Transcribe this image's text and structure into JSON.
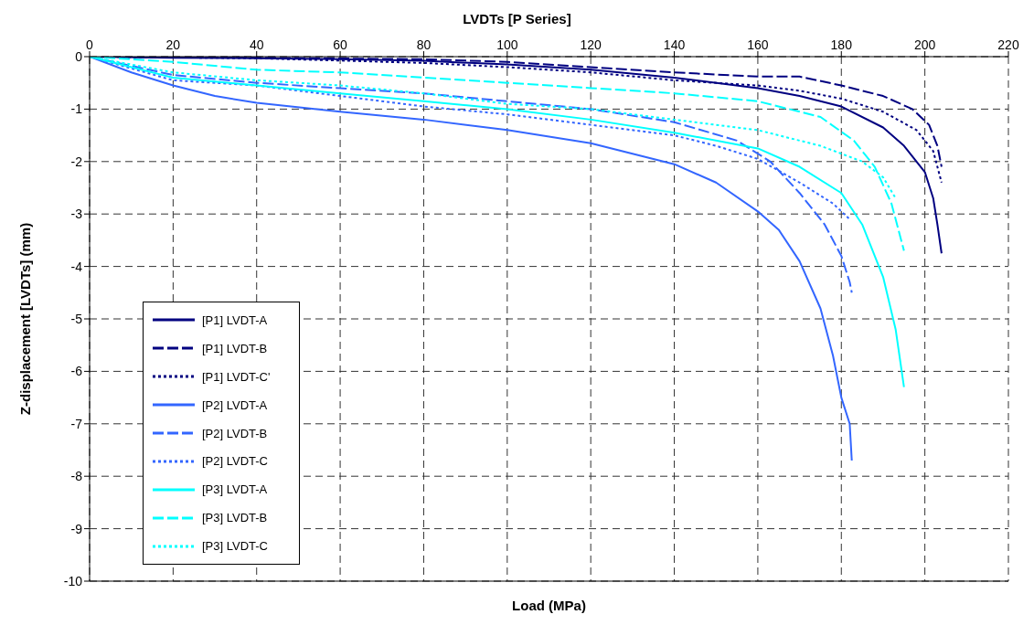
{
  "chart_data": {
    "type": "line",
    "title": "LVDTs [P Series]",
    "xlabel": "Load (MPa)",
    "ylabel": "Z-displacement [LVDTs] (mm)",
    "xlim": [
      0,
      220
    ],
    "xticks": [
      0,
      20,
      40,
      60,
      80,
      100,
      120,
      140,
      160,
      180,
      200,
      220
    ],
    "ylim": [
      -10,
      0
    ],
    "yticks": [
      -10,
      -9,
      -8,
      -7,
      -6,
      -5,
      -4,
      -3,
      -2,
      -1,
      0
    ],
    "grid": true,
    "legend": "bottom left",
    "marker": "none",
    "series": [
      {
        "name": "[P1] LVDT-A",
        "color": "#000080",
        "line_style": "solid",
        "x": [
          0,
          20,
          40,
          60,
          80,
          100,
          120,
          140,
          160,
          170,
          180,
          190,
          195,
          200,
          202,
          203,
          204
        ],
        "values": [
          0,
          -0.02,
          -0.03,
          -0.05,
          -0.08,
          -0.15,
          -0.25,
          -0.4,
          -0.6,
          -0.75,
          -0.95,
          -1.35,
          -1.7,
          -2.2,
          -2.7,
          -3.2,
          -3.75
        ]
      },
      {
        "name": "[P1] LVDT-B",
        "color": "#000080",
        "line_style": "dashed",
        "x": [
          0,
          40,
          80,
          100,
          120,
          140,
          160,
          170,
          180,
          190,
          197,
          201,
          203,
          204
        ],
        "values": [
          0,
          -0.02,
          -0.05,
          -0.1,
          -0.2,
          -0.3,
          -0.38,
          -0.38,
          -0.55,
          -0.75,
          -1.0,
          -1.3,
          -1.7,
          -2.1
        ]
      },
      {
        "name": "[P1] LVDT-C'",
        "color": "#000080",
        "line_style": "dotted",
        "x": [
          0,
          40,
          80,
          100,
          120,
          140,
          160,
          170,
          180,
          190,
          198,
          202,
          204
        ],
        "values": [
          0,
          -0.03,
          -0.12,
          -0.2,
          -0.3,
          -0.45,
          -0.55,
          -0.65,
          -0.8,
          -1.05,
          -1.4,
          -1.8,
          -2.4
        ]
      },
      {
        "name": "[P2] LVDT-A",
        "color": "#3366ff",
        "line_style": "solid",
        "x": [
          0,
          10,
          20,
          30,
          40,
          60,
          80,
          100,
          120,
          140,
          150,
          160,
          165,
          170,
          175,
          178,
          180,
          182,
          182.5
        ],
        "values": [
          0,
          -0.3,
          -0.55,
          -0.75,
          -0.88,
          -1.05,
          -1.2,
          -1.4,
          -1.65,
          -2.05,
          -2.4,
          -2.95,
          -3.3,
          -3.9,
          -4.8,
          -5.7,
          -6.5,
          -7.0,
          -7.7
        ]
      },
      {
        "name": "[P2] LVDT-B",
        "color": "#3366ff",
        "line_style": "dashed",
        "x": [
          0,
          20,
          40,
          60,
          80,
          100,
          120,
          140,
          155,
          163,
          170,
          176,
          180,
          182,
          182.5
        ],
        "values": [
          0,
          -0.35,
          -0.5,
          -0.6,
          -0.7,
          -0.85,
          -1.0,
          -1.25,
          -1.6,
          -2.0,
          -2.6,
          -3.2,
          -3.8,
          -4.3,
          -4.5
        ]
      },
      {
        "name": "[P2] LVDT-C",
        "color": "#3366ff",
        "line_style": "dotted",
        "x": [
          0,
          20,
          40,
          60,
          80,
          100,
          120,
          140,
          150,
          160,
          170,
          178,
          182
        ],
        "values": [
          0,
          -0.45,
          -0.55,
          -0.75,
          -0.95,
          -1.1,
          -1.3,
          -1.5,
          -1.7,
          -1.95,
          -2.4,
          -2.8,
          -3.1
        ]
      },
      {
        "name": "[P3] LVDT-A",
        "color": "#00ffff",
        "line_style": "solid",
        "x": [
          0,
          20,
          40,
          60,
          80,
          100,
          120,
          140,
          160,
          170,
          180,
          185,
          190,
          193,
          195
        ],
        "values": [
          0,
          -0.4,
          -0.55,
          -0.7,
          -0.85,
          -1.0,
          -1.2,
          -1.45,
          -1.75,
          -2.1,
          -2.6,
          -3.2,
          -4.2,
          -5.2,
          -6.3
        ]
      },
      {
        "name": "[P3] LVDT-B",
        "color": "#00ffff",
        "line_style": "dashed",
        "x": [
          0,
          20,
          40,
          60,
          80,
          100,
          120,
          140,
          160,
          175,
          183,
          188,
          192,
          195
        ],
        "values": [
          0,
          -0.1,
          -0.25,
          -0.3,
          -0.4,
          -0.5,
          -0.6,
          -0.7,
          -0.85,
          -1.15,
          -1.6,
          -2.1,
          -2.8,
          -3.7
        ]
      },
      {
        "name": "[P3] LVDT-C",
        "color": "#00ffff",
        "line_style": "dotted",
        "x": [
          0,
          20,
          40,
          60,
          80,
          100,
          120,
          140,
          160,
          175,
          185,
          190,
          193
        ],
        "values": [
          0,
          -0.3,
          -0.45,
          -0.55,
          -0.7,
          -0.9,
          -1.0,
          -1.2,
          -1.4,
          -1.7,
          -2.0,
          -2.3,
          -2.7
        ]
      }
    ]
  }
}
